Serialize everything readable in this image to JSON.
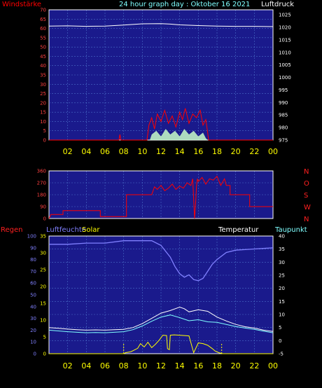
{
  "header": {
    "left_label": "Windstärke",
    "title": "24 hour graph day : Oktober 16 2021",
    "right_label": "Luftdruck"
  },
  "colors": {
    "plot_bg": "#1a1a8c",
    "grid": "#4a6ec8",
    "axis": "#ffffff",
    "wind": "#ff0000",
    "gust_fill": "#c8ffc8",
    "pressure": "#ffffff",
    "direction": "#ff0000",
    "humidity": "#8080ff",
    "solar": "#ffff00",
    "temperature": "#ffffff",
    "dewpoint": "#80ffff",
    "x_tick": "#ffff00"
  },
  "x_ticks": [
    "02",
    "04",
    "06",
    "08",
    "10",
    "12",
    "14",
    "16",
    "18",
    "20",
    "22",
    "00"
  ],
  "chart_data": [
    {
      "type": "line",
      "panel": "wind_pressure",
      "left_axis": {
        "label": "Windstärke",
        "ylim": [
          0,
          70
        ],
        "ticks": [
          0,
          5,
          10,
          15,
          20,
          25,
          30,
          35,
          40,
          45,
          50,
          55,
          60,
          65,
          70
        ]
      },
      "right_axis": {
        "label": "Luftdruck",
        "ylim": [
          975,
          1027
        ],
        "ticks": [
          975,
          980,
          985,
          990,
          995,
          1000,
          1005,
          1010,
          1015,
          1020,
          1025
        ]
      },
      "series": [
        {
          "key": "pressure",
          "axis": "right",
          "x": [
            0,
            2,
            4,
            6,
            8,
            10,
            12,
            13,
            14,
            16,
            18,
            20,
            22,
            24
          ],
          "y": [
            1020.5,
            1020.6,
            1020.4,
            1020.5,
            1020.9,
            1021.4,
            1021.5,
            1021.3,
            1021.0,
            1020.7,
            1020.5,
            1020.4,
            1020.4,
            1020.3
          ]
        },
        {
          "key": "wind",
          "axis": "left",
          "x": [
            0,
            7.5,
            7.6,
            7.7,
            10.5,
            10.7,
            11.0,
            11.3,
            11.6,
            12.0,
            12.4,
            12.8,
            13.2,
            13.6,
            14.0,
            14.3,
            14.6,
            15.0,
            15.4,
            15.8,
            16.2,
            16.5,
            16.8,
            17.0,
            17.1,
            24
          ],
          "y": [
            0,
            0,
            3,
            0,
            0,
            8,
            12,
            6,
            14,
            10,
            16,
            9,
            13,
            7,
            15,
            11,
            17,
            9,
            14,
            12,
            16,
            8,
            11,
            4,
            0,
            0
          ]
        },
        {
          "key": "gust",
          "axis": "left",
          "fill": true,
          "x": [
            0,
            10.8,
            11.0,
            11.5,
            12.0,
            12.5,
            13.0,
            13.5,
            14.0,
            14.5,
            15.0,
            15.5,
            16.0,
            16.5,
            16.8,
            17.0,
            24
          ],
          "y": [
            0,
            0,
            3,
            5,
            2,
            6,
            3,
            5,
            2,
            6,
            3,
            5,
            2,
            4,
            1,
            0,
            0
          ]
        }
      ]
    },
    {
      "type": "line",
      "panel": "wind_direction",
      "left_axis": {
        "ylim": [
          0,
          360
        ],
        "ticks": [
          0,
          90,
          180,
          270,
          360
        ]
      },
      "right_labels": [
        "N",
        "W",
        "S",
        "O",
        "N"
      ],
      "series": [
        {
          "key": "direction",
          "x": [
            0,
            0.2,
            1.5,
            1.5,
            5.5,
            5.5,
            8.3,
            8.3,
            11.0,
            11.3,
            11.6,
            12.0,
            12.4,
            12.8,
            13.2,
            13.6,
            14.0,
            14.4,
            14.8,
            15.2,
            15.4,
            15.6,
            15.7,
            15.8,
            15.9,
            16.0,
            16.4,
            16.8,
            17.2,
            17.6,
            18.0,
            18.4,
            18.8,
            19.0,
            19.4,
            19.4,
            21.5,
            21.5,
            24
          ],
          "y": [
            0,
            30,
            30,
            60,
            60,
            15,
            15,
            180,
            180,
            240,
            220,
            250,
            210,
            230,
            260,
            220,
            245,
            230,
            270,
            250,
            300,
            0,
            100,
            240,
            300,
            280,
            310,
            260,
            300,
            290,
            320,
            250,
            300,
            250,
            250,
            180,
            180,
            90,
            90
          ]
        }
      ]
    },
    {
      "type": "line",
      "panel": "humidity_solar_temperature",
      "left_axis": {
        "label": "Luftfeuchte",
        "ylim": [
          0,
          100
        ],
        "ticks": [
          0,
          10,
          20,
          30,
          40,
          50,
          60,
          70,
          80,
          90,
          100
        ]
      },
      "solar_axis": {
        "label": "Solar",
        "ylim": [
          0,
          35
        ],
        "ticks": [
          0,
          5,
          10,
          15,
          20,
          25,
          30,
          35
        ]
      },
      "right_axis": {
        "label": "Taupunkt",
        "ylim": [
          -5,
          40
        ],
        "ticks": [
          -5,
          0,
          5,
          10,
          15,
          20,
          25,
          30,
          35,
          40
        ]
      },
      "temperature_label": "Temperatur",
      "rain_label": "Regen",
      "series": [
        {
          "key": "humidity",
          "axis": "left",
          "x": [
            0,
            2,
            4,
            6,
            8,
            9,
            10,
            11,
            12,
            13,
            13.5,
            14,
            14.5,
            15,
            15.5,
            16,
            16.5,
            17,
            17.5,
            18,
            19,
            20,
            22,
            24
          ],
          "y": [
            93,
            93,
            94,
            94,
            96,
            96,
            96,
            96,
            92,
            82,
            74,
            68,
            65,
            67,
            63,
            62,
            64,
            70,
            76,
            80,
            86,
            88,
            89,
            90
          ]
        },
        {
          "key": "temperature",
          "axis": "right",
          "x": [
            0,
            1,
            2,
            3,
            4,
            5,
            6,
            7,
            8,
            9,
            10,
            11,
            12,
            13,
            14,
            14.5,
            15,
            16,
            17,
            18,
            19,
            20,
            21,
            22,
            23,
            24
          ],
          "y": [
            5.0,
            4.7,
            4.4,
            4.2,
            4.0,
            4.1,
            4.0,
            4.2,
            4.3,
            5.0,
            6.5,
            8.5,
            10.5,
            11.5,
            12.8,
            12.2,
            11.0,
            11.8,
            11.2,
            9.0,
            7.5,
            6.2,
            5.3,
            4.8,
            4.0,
            3.5
          ]
        },
        {
          "key": "dewpoint",
          "axis": "right",
          "x": [
            0,
            1,
            2,
            3,
            4,
            5,
            6,
            7,
            8,
            9,
            10,
            11,
            12,
            13,
            14,
            15,
            16,
            17,
            18,
            19,
            20,
            21,
            22,
            23,
            24
          ],
          "y": [
            4.0,
            3.7,
            3.4,
            3.2,
            3.0,
            3.1,
            3.0,
            3.2,
            3.4,
            4.2,
            5.6,
            7.4,
            9.0,
            9.8,
            8.8,
            7.6,
            8.0,
            7.2,
            7.0,
            6.2,
            5.4,
            4.8,
            4.3,
            3.6,
            3.0
          ]
        },
        {
          "key": "solar",
          "axis": "solar",
          "x": [
            0,
            8.0,
            8.2,
            8.8,
            9.5,
            9.8,
            10.2,
            10.6,
            11.0,
            11.4,
            11.8,
            12.2,
            12.6,
            12.7,
            12.9,
            13.0,
            13.4,
            14.0,
            14.5,
            15.0,
            15.5,
            16.0,
            16.5,
            17.0,
            17.5,
            17.8,
            18.2,
            18.6,
            24
          ],
          "y": [
            0,
            0,
            0.3,
            0.6,
            1.6,
            3.0,
            2.0,
            3.4,
            1.8,
            2.8,
            4.0,
            5.5,
            5.4,
            1.5,
            1.2,
            5.5,
            5.6,
            5.5,
            5.4,
            5.3,
            0.3,
            3.2,
            3.0,
            2.5,
            1.5,
            0.8,
            0.3,
            0.0,
            0
          ]
        }
      ]
    }
  ]
}
